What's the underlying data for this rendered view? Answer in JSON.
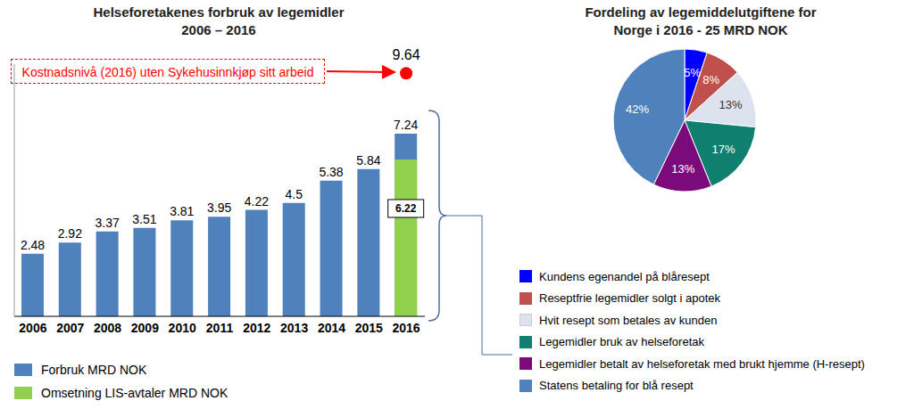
{
  "chart_data": [
    {
      "type": "bar",
      "title": "Helseforetakenes forbruk av legemidler",
      "subtitle": "2006 – 2016",
      "categories": [
        "2006",
        "2007",
        "2008",
        "2009",
        "2010",
        "2011",
        "2012",
        "2013",
        "2014",
        "2015",
        "2016"
      ],
      "series": [
        {
          "name": "Forbruk MRD NOK",
          "color": "#4f81bd",
          "values": [
            2.48,
            2.92,
            3.37,
            3.51,
            3.81,
            3.95,
            4.22,
            4.5,
            5.38,
            5.84,
            7.24
          ]
        },
        {
          "name": "Omsetning LIS-avtaler MRD NOK",
          "color": "#92d050",
          "values": [
            null,
            null,
            null,
            null,
            null,
            null,
            null,
            null,
            null,
            null,
            6.22
          ]
        }
      ],
      "ylim": [
        0,
        10
      ],
      "tick_labels": "x",
      "data_labels": true,
      "legend": "bottom left",
      "annotations": [
        {
          "text": "Kostnadsnivå (2016) uten Sykehusinnkjøp sitt arbeid",
          "x": "2016",
          "y": 9.64,
          "color": "#ff0000"
        }
      ]
    },
    {
      "type": "pie",
      "title": "Fordeling av legemiddelutgiftene for",
      "subtitle": "Norge i 2016 -  25 MRD NOK",
      "categories": [
        "Kundens egenandel på blåresept",
        "Reseptfrie legemidler solgt i apotek",
        "Hvit resept som betales av kunden",
        "Legemidler bruk av helseforetak",
        "Legemidler betalt av helseforetak med brukt hjemme (H-resept)",
        "Statens betaling for blå resept"
      ],
      "values": [
        5,
        8,
        13,
        17,
        13,
        42
      ],
      "value_labels": [
        "5%",
        "8%",
        "13%",
        "17%",
        "13%",
        "42%"
      ],
      "colors": [
        "#0000ff",
        "#c0504d",
        "#dde3ee",
        "#0f7f6f",
        "#7b0a7b",
        "#4f81bd"
      ],
      "data_labels": true,
      "legend": "bottom"
    }
  ]
}
